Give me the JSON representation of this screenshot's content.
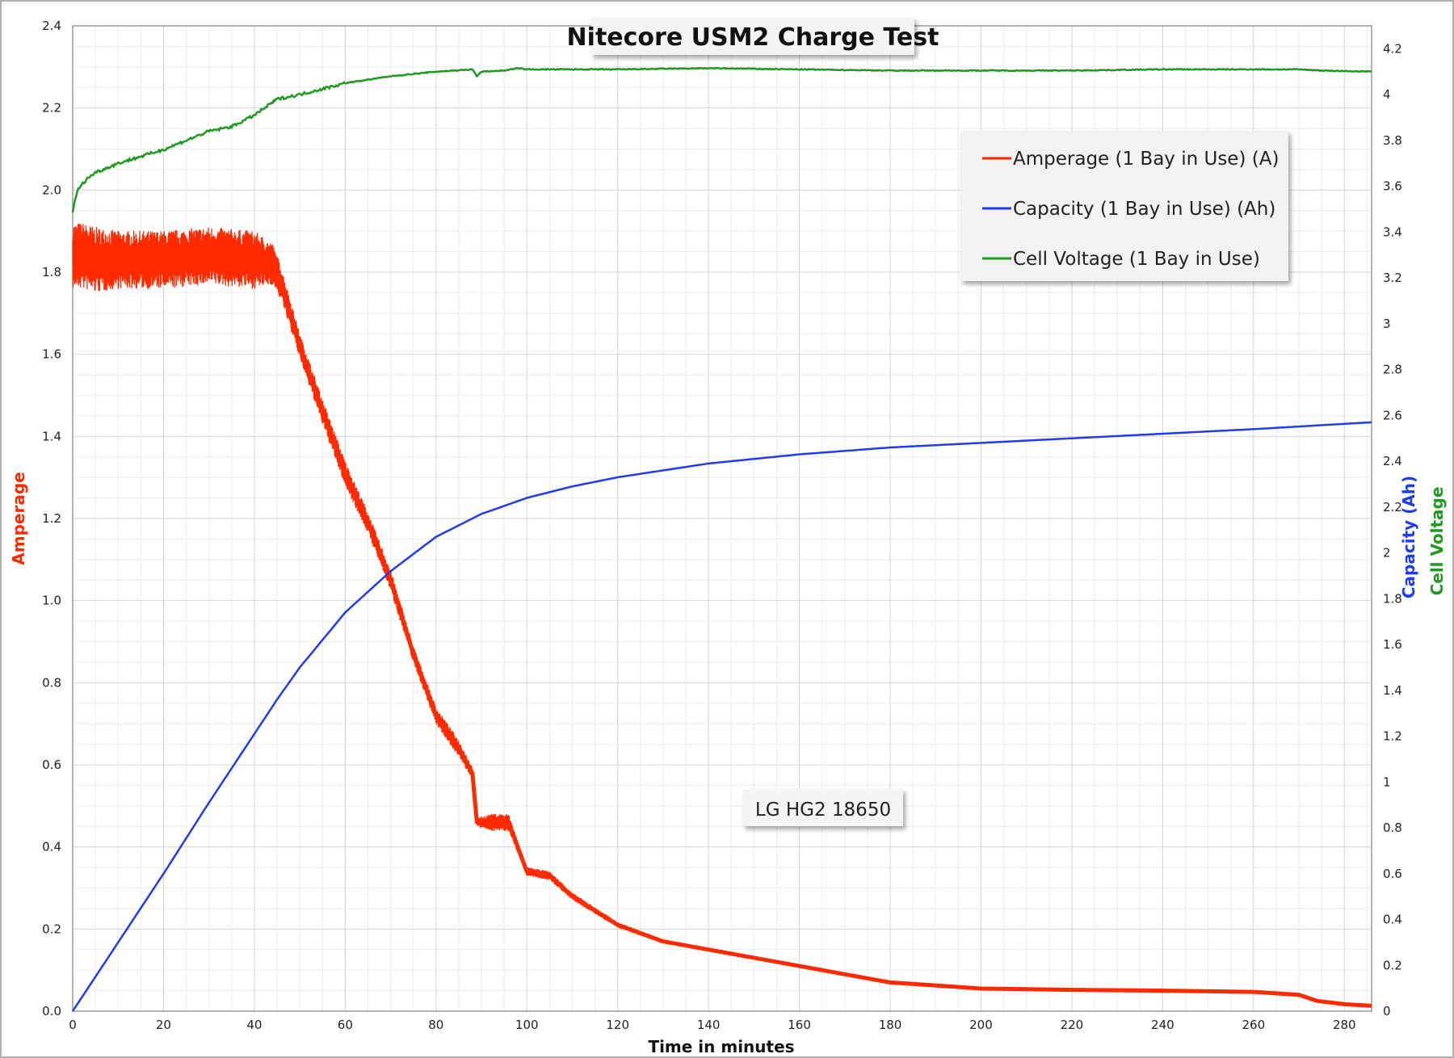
{
  "chart_data": {
    "type": "line",
    "title": "Nitecore USM2 Charge Test",
    "annotation": "LG HG2 18650",
    "xlabel": "Time in minutes",
    "ylabel_left": "Amperage",
    "ylabel_right_1": "Capacity (Ah)",
    "ylabel_right_2": "Cell Voltage",
    "xlim": [
      0,
      286
    ],
    "xticks": [
      0,
      20,
      40,
      60,
      80,
      100,
      120,
      140,
      160,
      180,
      200,
      220,
      240,
      260,
      280
    ],
    "ylim_left": [
      0,
      2.4
    ],
    "yticks_left": [
      "0.0",
      "0.2",
      "0.4",
      "0.6",
      "0.8",
      "1.0",
      "1.2",
      "1.4",
      "1.6",
      "1.8",
      "2.0",
      "2.2",
      "2.4"
    ],
    "ylim_right": [
      0,
      4.3
    ],
    "yticks_right": [
      "0",
      "0.2",
      "0.4",
      "0.6",
      "0.8",
      "1",
      "1.2",
      "1.4",
      "1.6",
      "1.8",
      "2",
      "2.2",
      "2.4",
      "2.6",
      "2.8",
      "3",
      "3.2",
      "3.4",
      "3.6",
      "3.8",
      "4",
      "4.2"
    ],
    "grid": true,
    "legend_position": "top-right",
    "colors": {
      "amperage": "#ff2a00",
      "capacity": "#1f3cf0",
      "voltage": "#1e9a1e",
      "capacity_label": "#1f3cf0",
      "voltage_label": "#1e9a1e",
      "amperage_label": "#ff2a00"
    },
    "series": [
      {
        "name": "Amperage (1 Bay in Use) (A)",
        "axis": "left",
        "x": [
          0,
          2,
          5,
          10,
          20,
          30,
          40,
          44,
          46,
          50,
          55,
          60,
          65,
          70,
          75,
          80,
          85,
          88,
          89,
          92,
          96,
          100,
          105,
          110,
          120,
          130,
          140,
          150,
          160,
          170,
          180,
          200,
          220,
          240,
          260,
          270,
          274,
          280,
          286
        ],
        "values": [
          1.84,
          1.84,
          1.83,
          1.83,
          1.83,
          1.84,
          1.83,
          1.82,
          1.77,
          1.62,
          1.46,
          1.31,
          1.19,
          1.05,
          0.87,
          0.72,
          0.64,
          0.58,
          0.46,
          0.46,
          0.46,
          0.34,
          0.33,
          0.28,
          0.21,
          0.17,
          0.15,
          0.13,
          0.11,
          0.09,
          0.07,
          0.055,
          0.052,
          0.05,
          0.047,
          0.04,
          0.025,
          0.017,
          0.013
        ],
        "noise_band": [
          0.08,
          0.08,
          0.08,
          0.07,
          0.07,
          0.07,
          0.07,
          0.05,
          0.04,
          0.03,
          0.03,
          0.03,
          0.025,
          0.025,
          0.02,
          0.02,
          0.02,
          0.015,
          0.01,
          0.02,
          0.02,
          0.01,
          0.01,
          0.008,
          0.006,
          0.004,
          0.004,
          0.003,
          0.002,
          0.002,
          0.002,
          0.001,
          0.001,
          0.001,
          0.001,
          0.001,
          0.001,
          0.001,
          0.001
        ]
      },
      {
        "name": "Capacity (1 Bay in Use) (Ah)",
        "axis": "right",
        "x": [
          0,
          10,
          20,
          30,
          40,
          45,
          50,
          60,
          70,
          80,
          90,
          100,
          110,
          120,
          130,
          140,
          160,
          180,
          200,
          220,
          240,
          260,
          286
        ],
        "values": [
          0,
          0.3,
          0.6,
          0.91,
          1.21,
          1.36,
          1.5,
          1.74,
          1.92,
          2.07,
          2.17,
          2.24,
          2.29,
          2.33,
          2.36,
          2.39,
          2.43,
          2.46,
          2.48,
          2.5,
          2.52,
          2.54,
          2.57
        ]
      },
      {
        "name": "Cell Voltage (1 Bay in Use)",
        "axis": "right",
        "x": [
          0,
          1,
          3,
          5,
          10,
          20,
          30,
          35,
          40,
          45,
          50,
          60,
          70,
          80,
          88,
          89,
          90,
          95,
          98,
          100,
          120,
          140,
          160,
          180,
          200,
          220,
          240,
          260,
          270,
          275,
          286
        ],
        "values": [
          3.49,
          3.58,
          3.63,
          3.66,
          3.7,
          3.76,
          3.84,
          3.86,
          3.91,
          3.98,
          4.0,
          4.05,
          4.08,
          4.1,
          4.11,
          4.08,
          4.1,
          4.105,
          4.115,
          4.11,
          4.11,
          4.115,
          4.11,
          4.105,
          4.105,
          4.105,
          4.11,
          4.11,
          4.11,
          4.105,
          4.1
        ]
      }
    ]
  }
}
